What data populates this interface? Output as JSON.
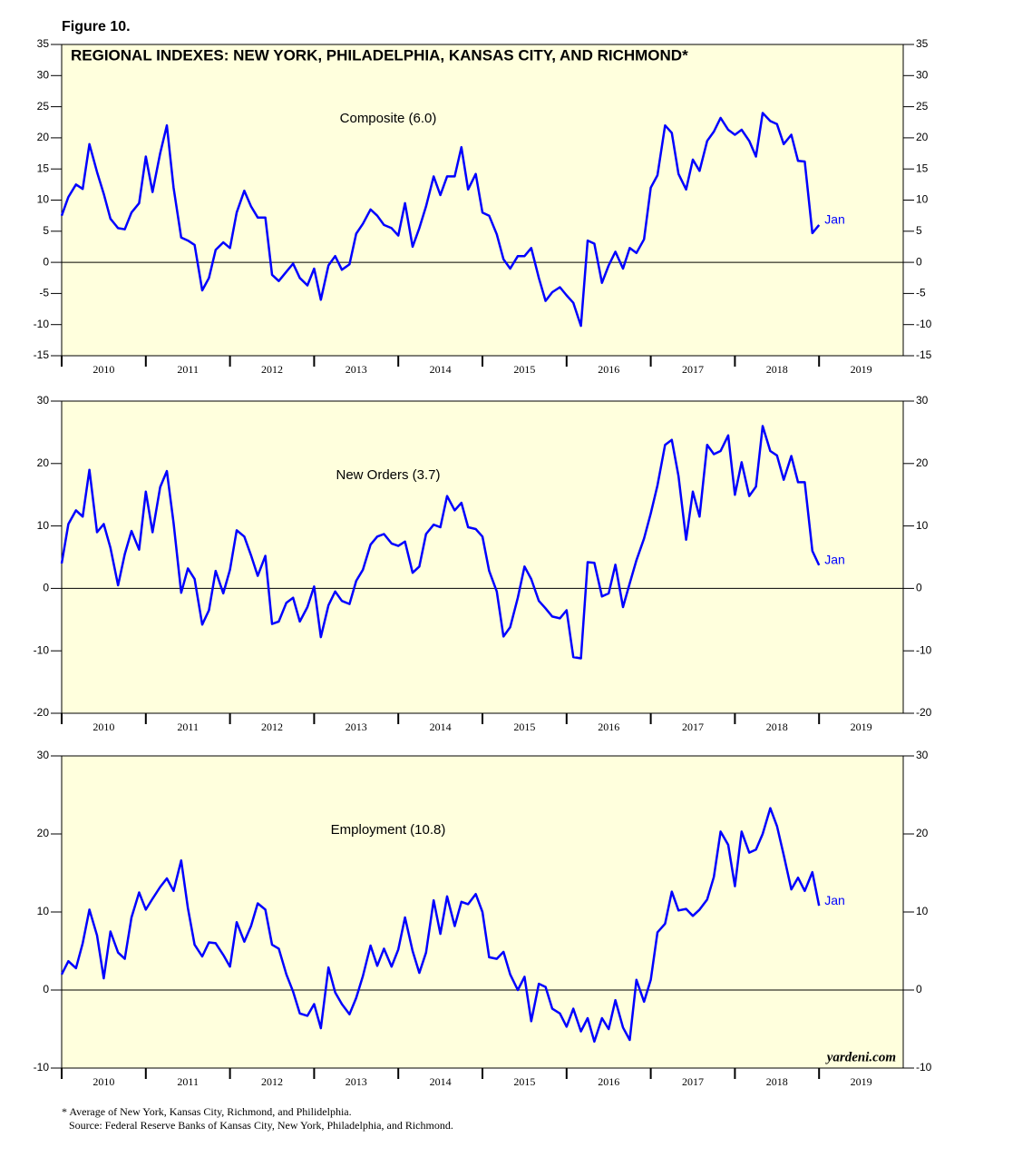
{
  "figure_label": "Figure 10.",
  "footnote": "* Average of New York, Kansas City, Richmond, and Philidelphia.",
  "source": "Source: Federal Reserve Banks of Kansas City, New York, Philadelphia, and Richmond.",
  "watermark": "yardeni.com",
  "chart_data": [
    {
      "type": "line",
      "title": "REGIONAL INDEXES: NEW YORK, PHILADELPHIA, KANSAS CITY, AND RICHMOND*",
      "label": "Composite (6.0)",
      "end_label": "Jan",
      "color": "#0000ff",
      "background": "#ffffdd",
      "zero_line": true,
      "xlim": [
        2010,
        2020
      ],
      "xticks": [
        2010,
        2011,
        2012,
        2013,
        2014,
        2015,
        2016,
        2017,
        2018,
        2019
      ],
      "ylim": [
        -15,
        35
      ],
      "yticks": [
        -15,
        -10,
        -5,
        0,
        5,
        10,
        15,
        20,
        25,
        30,
        35
      ],
      "x": [
        2010,
        2010.08,
        2010.17,
        2010.25,
        2010.33,
        2010.42,
        2010.5,
        2010.58,
        2010.67,
        2010.75,
        2010.83,
        2010.92,
        2011,
        2011.08,
        2011.17,
        2011.25,
        2011.33,
        2011.42,
        2011.5,
        2011.58,
        2011.67,
        2011.75,
        2011.83,
        2011.92,
        2012,
        2012.08,
        2012.17,
        2012.25,
        2012.33,
        2012.42,
        2012.5,
        2012.58,
        2012.67,
        2012.75,
        2012.83,
        2012.92,
        2013,
        2013.08,
        2013.17,
        2013.25,
        2013.33,
        2013.42,
        2013.5,
        2013.58,
        2013.67,
        2013.75,
        2013.83,
        2013.92,
        2014,
        2014.08,
        2014.17,
        2014.25,
        2014.33,
        2014.42,
        2014.5,
        2014.58,
        2014.67,
        2014.75,
        2014.83,
        2014.92,
        2015,
        2015.08,
        2015.17,
        2015.25,
        2015.33,
        2015.42,
        2015.5,
        2015.58,
        2015.67,
        2015.75,
        2015.83,
        2015.92,
        2016,
        2016.08,
        2016.17,
        2016.25,
        2016.33,
        2016.42,
        2016.5,
        2016.58,
        2016.67,
        2016.75,
        2016.83,
        2016.92,
        2017,
        2017.08,
        2017.17,
        2017.25,
        2017.33,
        2017.42,
        2017.5,
        2017.58,
        2017.67,
        2017.75,
        2017.83,
        2017.92,
        2018,
        2018.08,
        2018.17,
        2018.25,
        2018.33,
        2018.42,
        2018.5,
        2018.58,
        2018.67,
        2018.75,
        2018.83,
        2018.92,
        2019
      ],
      "values": [
        7.5,
        10.5,
        12.5,
        11.8,
        19,
        14.5,
        11,
        7,
        5.5,
        5.3,
        8,
        9.5,
        17,
        11.3,
        17.5,
        22,
        12,
        4,
        3.5,
        2.8,
        -4.5,
        -2.5,
        2,
        3.2,
        2.3,
        8,
        11.5,
        9,
        7.2,
        7.2,
        -2,
        -3,
        -1.5,
        -0.2,
        -2.5,
        -3.7,
        -1,
        -6,
        -0.5,
        1,
        -1.2,
        -0.3,
        4.6,
        6.2,
        8.5,
        7.5,
        6,
        5.5,
        4.3,
        9.5,
        2.5,
        5.5,
        9,
        13.8,
        10.8,
        13.8,
        13.8,
        18.5,
        11.7,
        14.2,
        8,
        7.5,
        4.5,
        0.5,
        -1,
        1,
        1,
        2.3,
        -2.5,
        -6.2,
        -4.8,
        -4,
        -5.3,
        -6.5,
        -10.2,
        3.5,
        3,
        -3.3,
        -0.5,
        1.7,
        -1,
        2.3,
        1.5,
        3.7,
        12,
        14,
        22,
        20.8,
        14.2,
        11.7,
        16.5,
        14.7,
        19.5,
        21,
        23.2,
        21.3,
        20.5,
        21.3,
        19.5,
        17,
        24,
        22.7,
        22.2,
        19,
        20.5,
        16.3,
        16.2,
        4.7,
        6.0
      ]
    },
    {
      "type": "line",
      "label": "New Orders (3.7)",
      "end_label": "Jan",
      "color": "#0000ff",
      "background": "#ffffdd",
      "zero_line": true,
      "xlim": [
        2010,
        2020
      ],
      "xticks": [
        2010,
        2011,
        2012,
        2013,
        2014,
        2015,
        2016,
        2017,
        2018,
        2019
      ],
      "ylim": [
        -20,
        30
      ],
      "yticks": [
        -20,
        -10,
        0,
        10,
        20,
        30
      ],
      "x": [
        2010,
        2010.08,
        2010.17,
        2010.25,
        2010.33,
        2010.42,
        2010.5,
        2010.58,
        2010.67,
        2010.75,
        2010.83,
        2010.92,
        2011,
        2011.08,
        2011.17,
        2011.25,
        2011.33,
        2011.42,
        2011.5,
        2011.58,
        2011.67,
        2011.75,
        2011.83,
        2011.92,
        2012,
        2012.08,
        2012.17,
        2012.25,
        2012.33,
        2012.42,
        2012.5,
        2012.58,
        2012.67,
        2012.75,
        2012.83,
        2012.92,
        2013,
        2013.08,
        2013.17,
        2013.25,
        2013.33,
        2013.42,
        2013.5,
        2013.58,
        2013.67,
        2013.75,
        2013.83,
        2013.92,
        2014,
        2014.08,
        2014.17,
        2014.25,
        2014.33,
        2014.42,
        2014.5,
        2014.58,
        2014.67,
        2014.75,
        2014.83,
        2014.92,
        2015,
        2015.08,
        2015.17,
        2015.25,
        2015.33,
        2015.42,
        2015.5,
        2015.58,
        2015.67,
        2015.75,
        2015.83,
        2015.92,
        2016,
        2016.08,
        2016.17,
        2016.25,
        2016.33,
        2016.42,
        2016.5,
        2016.58,
        2016.67,
        2016.75,
        2016.83,
        2016.92,
        2017,
        2017.08,
        2017.17,
        2017.25,
        2017.33,
        2017.42,
        2017.5,
        2017.58,
        2017.67,
        2017.75,
        2017.83,
        2017.92,
        2018,
        2018.08,
        2018.17,
        2018.25,
        2018.33,
        2018.42,
        2018.5,
        2018.58,
        2018.67,
        2018.75,
        2018.83,
        2018.92,
        2019
      ],
      "values": [
        4,
        10.3,
        12.5,
        11.5,
        19,
        9,
        10.3,
        6.5,
        0.5,
        5.5,
        9.2,
        6.2,
        15.5,
        9,
        16.2,
        18.8,
        10.5,
        -0.7,
        3.2,
        1.5,
        -5.8,
        -3.5,
        2.8,
        -0.8,
        3,
        9.3,
        8.3,
        5.3,
        2,
        5.2,
        -5.7,
        -5.3,
        -2.3,
        -1.5,
        -5.3,
        -3,
        0.3,
        -7.8,
        -2.7,
        -0.5,
        -2,
        -2.5,
        1.2,
        3,
        7,
        8.3,
        8.7,
        7.2,
        6.8,
        7.5,
        2.5,
        3.5,
        8.7,
        10.2,
        9.8,
        14.8,
        12.5,
        13.7,
        9.8,
        9.5,
        8.3,
        2.8,
        -0.5,
        -7.7,
        -6.2,
        -1.5,
        3.5,
        1.5,
        -2,
        -3.2,
        -4.5,
        -4.8,
        -3.5,
        -11,
        -11.2,
        4.2,
        4.1,
        -1.3,
        -0.8,
        3.8,
        -3,
        0.8,
        4.5,
        8,
        12,
        16.5,
        23,
        23.8,
        18,
        7.8,
        15.5,
        11.5,
        23,
        21.5,
        22,
        24.5,
        15,
        20.2,
        14.8,
        16.3,
        26,
        22,
        21.3,
        17.4,
        21.2,
        17,
        17,
        6,
        3.7
      ]
    },
    {
      "type": "line",
      "label": "Employment (10.8)",
      "end_label": "Jan",
      "color": "#0000ff",
      "background": "#ffffdd",
      "zero_line": true,
      "xlim": [
        2010,
        2020
      ],
      "xticks": [
        2010,
        2011,
        2012,
        2013,
        2014,
        2015,
        2016,
        2017,
        2018,
        2019
      ],
      "ylim": [
        -10,
        30
      ],
      "yticks": [
        -10,
        0,
        10,
        20,
        30
      ],
      "x": [
        2010,
        2010.08,
        2010.17,
        2010.25,
        2010.33,
        2010.42,
        2010.5,
        2010.58,
        2010.67,
        2010.75,
        2010.83,
        2010.92,
        2011,
        2011.08,
        2011.17,
        2011.25,
        2011.33,
        2011.42,
        2011.5,
        2011.58,
        2011.67,
        2011.75,
        2011.83,
        2011.92,
        2012,
        2012.08,
        2012.17,
        2012.25,
        2012.33,
        2012.42,
        2012.5,
        2012.58,
        2012.67,
        2012.75,
        2012.83,
        2012.92,
        2013,
        2013.08,
        2013.17,
        2013.25,
        2013.33,
        2013.42,
        2013.5,
        2013.58,
        2013.67,
        2013.75,
        2013.83,
        2013.92,
        2014,
        2014.08,
        2014.17,
        2014.25,
        2014.33,
        2014.42,
        2014.5,
        2014.58,
        2014.67,
        2014.75,
        2014.83,
        2014.92,
        2015,
        2015.08,
        2015.17,
        2015.25,
        2015.33,
        2015.42,
        2015.5,
        2015.58,
        2015.67,
        2015.75,
        2015.83,
        2015.92,
        2016,
        2016.08,
        2016.17,
        2016.25,
        2016.33,
        2016.42,
        2016.5,
        2016.58,
        2016.67,
        2016.75,
        2016.83,
        2016.92,
        2017,
        2017.08,
        2017.17,
        2017.25,
        2017.33,
        2017.42,
        2017.5,
        2017.58,
        2017.67,
        2017.75,
        2017.83,
        2017.92,
        2018,
        2018.08,
        2018.17,
        2018.25,
        2018.33,
        2018.42,
        2018.5,
        2018.58,
        2018.67,
        2018.75,
        2018.83,
        2018.92,
        2019
      ],
      "values": [
        2,
        3.7,
        2.8,
        6,
        10.3,
        7,
        1.5,
        7.5,
        4.8,
        4,
        9.3,
        12.5,
        10.3,
        11.7,
        13.2,
        14.3,
        12.7,
        16.6,
        10.5,
        5.8,
        4.3,
        6.1,
        6,
        4.5,
        3,
        8.7,
        6.2,
        8.2,
        11.1,
        10.3,
        5.8,
        5.3,
        2,
        -0.2,
        -3,
        -3.3,
        -1.8,
        -4.9,
        2.9,
        -0.3,
        -1.8,
        -3.1,
        -1,
        1.8,
        5.7,
        3.1,
        5.3,
        3,
        5.2,
        9.3,
        5,
        2.2,
        4.8,
        11.5,
        7.2,
        12,
        8.2,
        11.3,
        11,
        12.3,
        10,
        4.2,
        4,
        4.9,
        2,
        0,
        1.7,
        -4,
        0.8,
        0.4,
        -2.4,
        -3,
        -4.7,
        -2.4,
        -5.3,
        -3.6,
        -6.6,
        -3.6,
        -5,
        -1.3,
        -4.8,
        -6.4,
        1.3,
        -1.5,
        1.3,
        7.4,
        8.5,
        12.6,
        10.2,
        10.4,
        9.5,
        10.3,
        11.6,
        14.5,
        20.3,
        18.6,
        13.3,
        20.3,
        17.6,
        18,
        20,
        23.3,
        21,
        17.3,
        12.9,
        14.4,
        12.7,
        15.1,
        10.8
      ]
    }
  ]
}
